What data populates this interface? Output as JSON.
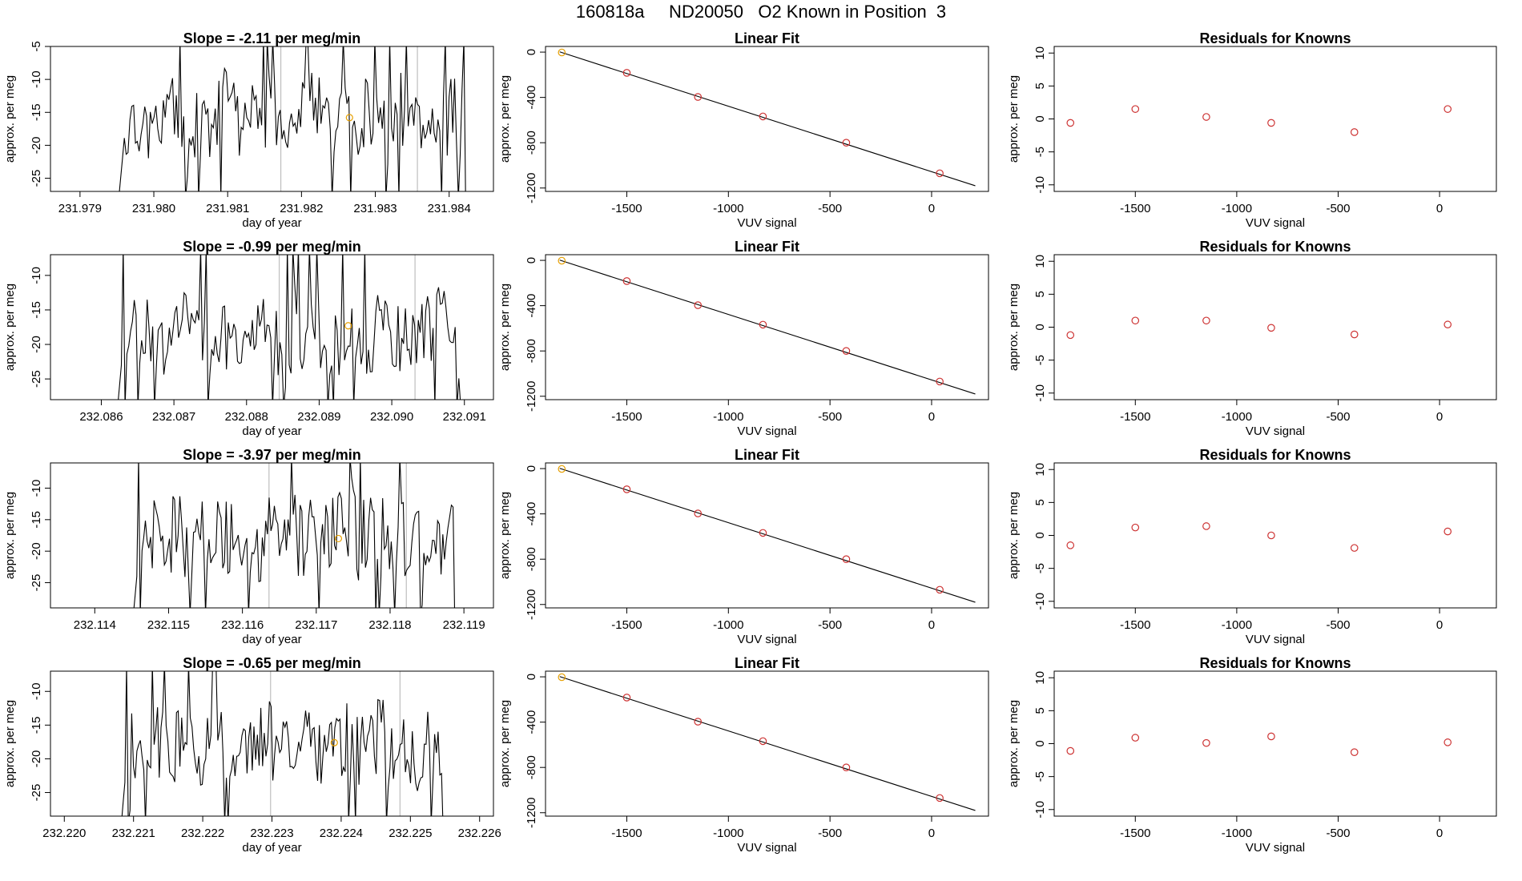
{
  "figure": {
    "title": "160818a     ND20050   O2 Known in Position  3"
  },
  "colors": {
    "line": "#000000",
    "axis": "#000000",
    "vline": "#bebebe",
    "orange": "#e69f00",
    "red": "#cd3333"
  },
  "chart_data": [
    {
      "row": 1,
      "type": "line",
      "title": "Slope =  -2.11  per meg/min",
      "xlabel": "day of year",
      "ylabel": "approx. per meg",
      "xlim": [
        231.9786,
        231.9846
      ],
      "ylim": [
        -27,
        -5
      ],
      "xticks": [
        231.979,
        231.98,
        231.981,
        231.982,
        231.983,
        231.984
      ],
      "xtick_labels": [
        "231.979",
        "231.980",
        "231.981",
        "231.982",
        "231.983",
        "231.984"
      ],
      "yticks": [
        -25,
        -20,
        -15,
        -10,
        -5
      ],
      "ytick_labels": [
        "-25",
        "-20",
        "-15",
        "-10",
        "-5"
      ],
      "vlines": [
        231.98172,
        231.98357
      ],
      "marker": {
        "x": 231.98265,
        "y": -15.8
      },
      "series": [
        {
          "name": "trace",
          "seed": 7,
          "x_start": 231.9795,
          "x_end": 231.98425,
          "n": 190,
          "base": -15.5,
          "amp": 6.5
        }
      ]
    },
    {
      "row": 1,
      "type": "scatter",
      "title": "Linear Fit",
      "xlabel": "VUV signal",
      "ylabel": "approx. per meg",
      "xlim": [
        -1900,
        280
      ],
      "ylim": [
        -1230,
        50
      ],
      "xticks": [
        -1500,
        -1000,
        -500,
        0
      ],
      "xtick_labels": [
        "-1500",
        "-1000",
        "-500",
        "0"
      ],
      "yticks": [
        0,
        -400,
        -800,
        -1200
      ],
      "ytick_labels": [
        "0",
        "-400",
        "-800",
        "-1200"
      ],
      "fit_line": [
        [
          -1830,
          2
        ],
        [
          215,
          -1180
        ]
      ],
      "points": [
        [
          -1820,
          -3
        ],
        [
          -1500,
          -183
        ],
        [
          -1150,
          -396
        ],
        [
          -830,
          -568
        ],
        [
          -420,
          -800
        ],
        [
          40,
          -1070
        ]
      ],
      "highlight_index": 0
    },
    {
      "row": 1,
      "type": "scatter",
      "title": "Residuals for Knowns",
      "xlabel": "VUV signal",
      "ylabel": "approx. per meg",
      "xlim": [
        -1900,
        280
      ],
      "ylim": [
        -11,
        11
      ],
      "xticks": [
        -1500,
        -1000,
        -500,
        0
      ],
      "xtick_labels": [
        "-1500",
        "-1000",
        "-500",
        "0"
      ],
      "yticks": [
        10,
        5,
        0,
        -5,
        -10
      ],
      "ytick_labels": [
        "10",
        "5",
        "0",
        "-5",
        "-10"
      ],
      "points": [
        [
          -1820,
          -0.6
        ],
        [
          -1500,
          1.5
        ],
        [
          -1150,
          0.3
        ],
        [
          -830,
          -0.6
        ],
        [
          -420,
          -2.0
        ],
        [
          40,
          1.5
        ]
      ]
    },
    {
      "row": 2,
      "type": "line",
      "title": "Slope =  -0.99  per meg/min",
      "xlabel": "day of year",
      "ylabel": "approx. per meg",
      "xlim": [
        232.0853,
        232.0914
      ],
      "ylim": [
        -28,
        -7
      ],
      "xticks": [
        232.086,
        232.087,
        232.088,
        232.089,
        232.09,
        232.091
      ],
      "xtick_labels": [
        "232.086",
        "232.087",
        "232.088",
        "232.089",
        "232.090",
        "232.091"
      ],
      "yticks": [
        -25,
        -20,
        -15,
        -10
      ],
      "ytick_labels": [
        "-25",
        "-20",
        "-15",
        "-10"
      ],
      "vlines": [
        232.08845,
        232.09032
      ],
      "marker": {
        "x": 232.0894,
        "y": -17.3
      },
      "series": [
        {
          "name": "trace",
          "seed": 19,
          "x_start": 232.0862,
          "x_end": 232.091,
          "n": 190,
          "base": -18,
          "amp": 6.5
        }
      ]
    },
    {
      "row": 2,
      "type": "scatter",
      "title": "Linear Fit",
      "xlabel": "VUV signal",
      "ylabel": "approx. per meg",
      "xlim": [
        -1900,
        280
      ],
      "ylim": [
        -1230,
        50
      ],
      "xticks": [
        -1500,
        -1000,
        -500,
        0
      ],
      "xtick_labels": [
        "-1500",
        "-1000",
        "-500",
        "0"
      ],
      "yticks": [
        0,
        -400,
        -800,
        -1200
      ],
      "ytick_labels": [
        "0",
        "-400",
        "-800",
        "-1200"
      ],
      "fit_line": [
        [
          -1830,
          2
        ],
        [
          215,
          -1180
        ]
      ],
      "points": [
        [
          -1820,
          -3
        ],
        [
          -1500,
          -183
        ],
        [
          -1150,
          -396
        ],
        [
          -830,
          -568
        ],
        [
          -420,
          -800
        ],
        [
          40,
          -1070
        ]
      ],
      "highlight_index": 0
    },
    {
      "row": 2,
      "type": "scatter",
      "title": "Residuals for Knowns",
      "xlabel": "VUV signal",
      "ylabel": "approx. per meg",
      "xlim": [
        -1900,
        280
      ],
      "ylim": [
        -11,
        11
      ],
      "xticks": [
        -1500,
        -1000,
        -500,
        0
      ],
      "xtick_labels": [
        "-1500",
        "-1000",
        "-500",
        "0"
      ],
      "yticks": [
        10,
        5,
        0,
        -5,
        -10
      ],
      "ytick_labels": [
        "10",
        "5",
        "0",
        "-5",
        "-10"
      ],
      "points": [
        [
          -1820,
          -1.2
        ],
        [
          -1500,
          1.0
        ],
        [
          -1150,
          1.0
        ],
        [
          -830,
          -0.1
        ],
        [
          -420,
          -1.1
        ],
        [
          40,
          0.4
        ]
      ]
    },
    {
      "row": 3,
      "type": "line",
      "title": "Slope =  -3.97  per meg/min",
      "xlabel": "day of year",
      "ylabel": "approx. per meg",
      "xlim": [
        232.1134,
        232.1194
      ],
      "ylim": [
        -29,
        -6
      ],
      "xticks": [
        232.114,
        232.115,
        232.116,
        232.117,
        232.118,
        232.119
      ],
      "xtick_labels": [
        "232.114",
        "232.115",
        "232.116",
        "232.117",
        "232.118",
        "232.119"
      ],
      "yticks": [
        -25,
        -20,
        -15,
        -10
      ],
      "ytick_labels": [
        "-25",
        "-20",
        "-15",
        "-10"
      ],
      "vlines": [
        232.11636,
        232.11822
      ],
      "marker": {
        "x": 232.1173,
        "y": -18.0
      },
      "series": [
        {
          "name": "trace",
          "seed": 31,
          "x_start": 232.1145,
          "x_end": 232.1189,
          "n": 190,
          "base": -18,
          "amp": 7
        }
      ]
    },
    {
      "row": 3,
      "type": "scatter",
      "title": "Linear Fit",
      "xlabel": "VUV signal",
      "ylabel": "approx. per meg",
      "xlim": [
        -1900,
        280
      ],
      "ylim": [
        -1230,
        50
      ],
      "xticks": [
        -1500,
        -1000,
        -500,
        0
      ],
      "xtick_labels": [
        "-1500",
        "-1000",
        "-500",
        "0"
      ],
      "yticks": [
        0,
        -400,
        -800,
        -1200
      ],
      "ytick_labels": [
        "0",
        "-400",
        "-800",
        "-1200"
      ],
      "fit_line": [
        [
          -1830,
          2
        ],
        [
          215,
          -1180
        ]
      ],
      "points": [
        [
          -1820,
          -3
        ],
        [
          -1500,
          -183
        ],
        [
          -1150,
          -396
        ],
        [
          -830,
          -568
        ],
        [
          -420,
          -800
        ],
        [
          40,
          -1070
        ]
      ],
      "highlight_index": 0
    },
    {
      "row": 3,
      "type": "scatter",
      "title": "Residuals for Knowns",
      "xlabel": "VUV signal",
      "ylabel": "approx. per meg",
      "xlim": [
        -1900,
        280
      ],
      "ylim": [
        -11,
        11
      ],
      "xticks": [
        -1500,
        -1000,
        -500,
        0
      ],
      "xtick_labels": [
        "-1500",
        "-1000",
        "-500",
        "0"
      ],
      "yticks": [
        10,
        5,
        0,
        -5,
        -10
      ],
      "ytick_labels": [
        "10",
        "5",
        "0",
        "-5",
        "-10"
      ],
      "points": [
        [
          -1820,
          -1.5
        ],
        [
          -1500,
          1.2
        ],
        [
          -1150,
          1.4
        ],
        [
          -830,
          0.0
        ],
        [
          -420,
          -1.9
        ],
        [
          40,
          0.6
        ]
      ]
    },
    {
      "row": 4,
      "type": "line",
      "title": "Slope =  -0.65  per meg/min",
      "xlabel": "day of year",
      "ylabel": "approx. per meg",
      "xlim": [
        232.2198,
        232.2262
      ],
      "ylim": [
        -28.5,
        -7
      ],
      "xticks": [
        232.22,
        232.221,
        232.222,
        232.223,
        232.224,
        232.225,
        232.226
      ],
      "xtick_labels": [
        "232.220",
        "232.221",
        "232.222",
        "232.223",
        "232.224",
        "232.225",
        "232.226"
      ],
      "yticks": [
        -25,
        -20,
        -15,
        -10
      ],
      "ytick_labels": [
        "-25",
        "-20",
        "-15",
        "-10"
      ],
      "vlines": [
        232.22298,
        232.22485
      ],
      "marker": {
        "x": 232.2239,
        "y": -17.6
      },
      "series": [
        {
          "name": "trace",
          "seed": 43,
          "x_start": 232.2208,
          "x_end": 232.2255,
          "n": 190,
          "base": -17.5,
          "amp": 6.5
        }
      ]
    },
    {
      "row": 4,
      "type": "scatter",
      "title": "Linear Fit",
      "xlabel": "VUV signal",
      "ylabel": "approx. per meg",
      "xlim": [
        -1900,
        280
      ],
      "ylim": [
        -1230,
        50
      ],
      "xticks": [
        -1500,
        -1000,
        -500,
        0
      ],
      "xtick_labels": [
        "-1500",
        "-1000",
        "-500",
        "0"
      ],
      "yticks": [
        0,
        -400,
        -800,
        -1200
      ],
      "ytick_labels": [
        "0",
        "-400",
        "-800",
        "-1200"
      ],
      "fit_line": [
        [
          -1830,
          2
        ],
        [
          215,
          -1180
        ]
      ],
      "points": [
        [
          -1820,
          -3
        ],
        [
          -1500,
          -183
        ],
        [
          -1150,
          -396
        ],
        [
          -830,
          -568
        ],
        [
          -420,
          -800
        ],
        [
          40,
          -1070
        ]
      ],
      "highlight_index": 0
    },
    {
      "row": 4,
      "type": "scatter",
      "title": "Residuals for Knowns",
      "xlabel": "VUV signal",
      "ylabel": "approx. per meg",
      "xlim": [
        -1900,
        280
      ],
      "ylim": [
        -11,
        11
      ],
      "xticks": [
        -1500,
        -1000,
        -500,
        0
      ],
      "xtick_labels": [
        "-1500",
        "-1000",
        "-500",
        "0"
      ],
      "yticks": [
        10,
        5,
        0,
        -5,
        -10
      ],
      "ytick_labels": [
        "10",
        "5",
        "0",
        "-5",
        "-10"
      ],
      "points": [
        [
          -1820,
          -1.1
        ],
        [
          -1500,
          0.9
        ],
        [
          -1150,
          0.1
        ],
        [
          -830,
          1.1
        ],
        [
          -420,
          -1.3
        ],
        [
          40,
          0.2
        ]
      ]
    }
  ]
}
